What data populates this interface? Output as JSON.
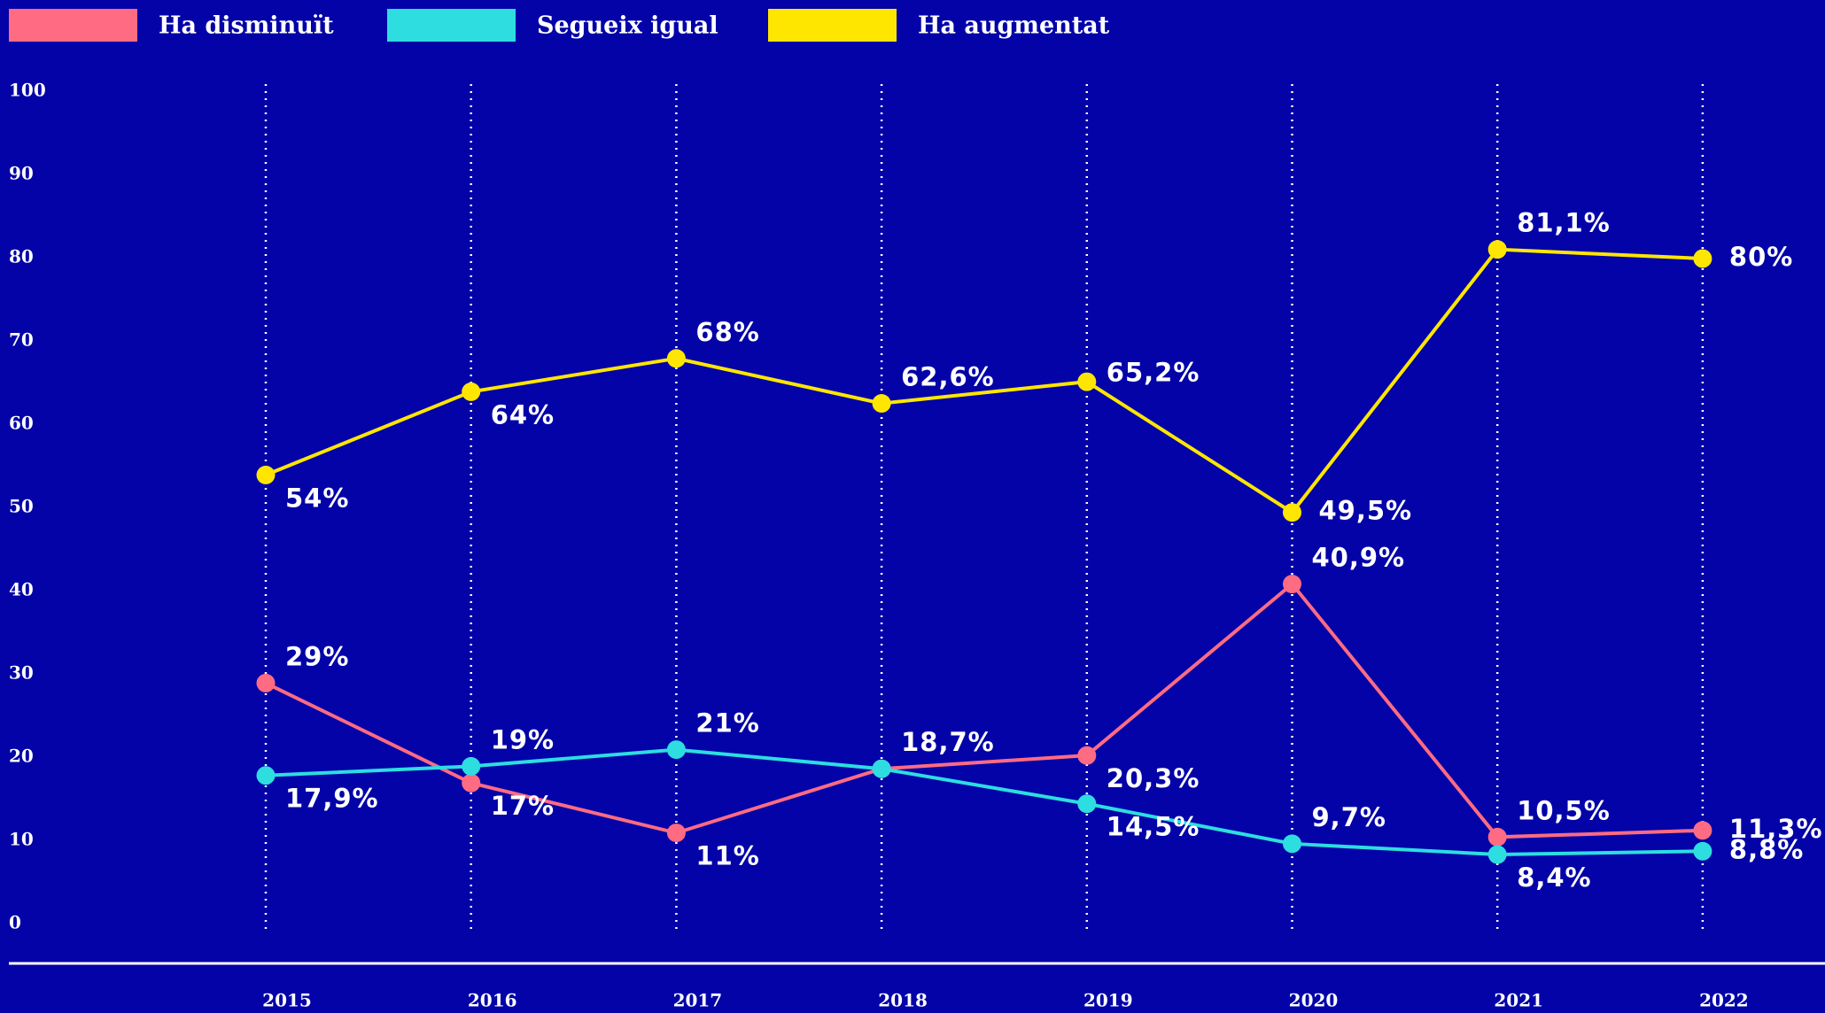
{
  "chart_data": {
    "type": "line",
    "categories": [
      "2015",
      "2016",
      "2017",
      "2018",
      "2019",
      "2020",
      "2021",
      "2022"
    ],
    "series": [
      {
        "name": "Ha disminuït",
        "color": "#ff6b82",
        "values": [
          29,
          17,
          11,
          18.7,
          20.3,
          40.9,
          10.5,
          11.3
        ],
        "value_labels": [
          "29%",
          "17%",
          "11%",
          "18,7%",
          "20,3%",
          "40,9%",
          "10,5%",
          "11,3%"
        ]
      },
      {
        "name": "Segueix igual",
        "color": "#2ddde0",
        "values": [
          17.9,
          19,
          21,
          18.7,
          14.5,
          9.7,
          8.4,
          8.8
        ],
        "value_labels": [
          "17,9%",
          "19%",
          "21%",
          null,
          "14,5%",
          "9,7%",
          "8,4%",
          "8,8%"
        ]
      },
      {
        "name": "Ha augmentat",
        "color": "#ffe600",
        "values": [
          54,
          64,
          68,
          62.6,
          65.2,
          49.5,
          81.1,
          80
        ],
        "value_labels": [
          "54%",
          "64%",
          "68%",
          "62,6%",
          "65,2%",
          "49,5%",
          "81,1%",
          "80%"
        ]
      }
    ],
    "ylim": [
      0,
      100
    ],
    "yticks": [
      0,
      10,
      20,
      30,
      40,
      50,
      60,
      70,
      80,
      90,
      100
    ],
    "grid": "x"
  }
}
